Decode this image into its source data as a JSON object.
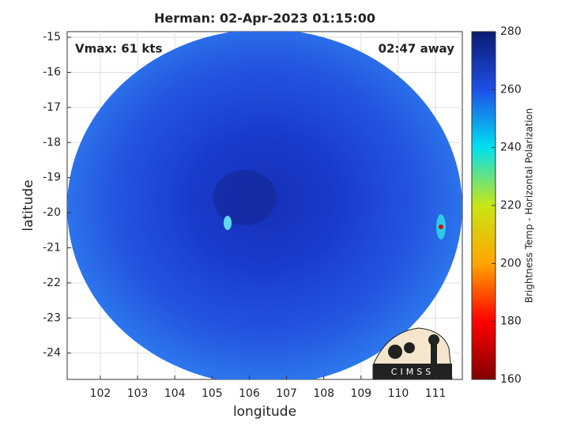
{
  "chart_data": {
    "type": "image_map",
    "title": "Herman: 02-Apr-2023 01:15:00",
    "annotations": [
      "Vmax: 61 kts",
      "02:47 away"
    ],
    "logo_text": "CIMSS",
    "x_label": "longitude",
    "y_label": "latitude",
    "xlim": [
      101.11,
      111.72
    ],
    "xticks": [
      102,
      103,
      104,
      105,
      106,
      107,
      108,
      109,
      110,
      111
    ],
    "ylim": [
      -24.75,
      -14.84
    ],
    "yticks": [
      -24,
      -23,
      -22,
      -21,
      -20,
      -19,
      -18,
      -17,
      -16,
      -15
    ],
    "grid": true,
    "colorbar_label": "Brightness Temp - Horizontal Polarization",
    "clim": [
      160,
      280
    ],
    "cticks": [
      160,
      180,
      200,
      220,
      240,
      260,
      280
    ],
    "colormap": [
      "#800000",
      "#ff0000",
      "#ffa500",
      "#c8e614",
      "#00e0f0",
      "#1f4fe6",
      "#0a1a70"
    ]
  }
}
